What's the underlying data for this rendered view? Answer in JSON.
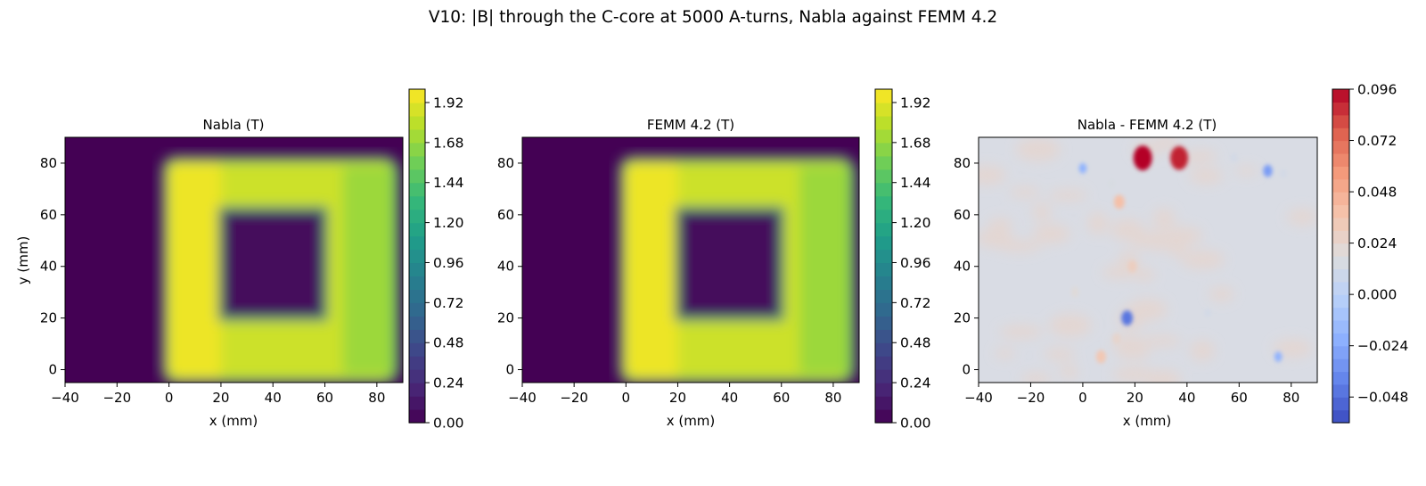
{
  "figure": {
    "title": "V10: |B| through the C-core at 5000 A-turns, Nabla against FEMM 4.2"
  },
  "chart_data": [
    {
      "type": "heatmap",
      "title": "Nabla (T)",
      "xlabel": "x (mm)",
      "ylabel": "y (mm)",
      "xlim": [
        -40,
        90
      ],
      "ylim": [
        -5,
        90
      ],
      "xticks": [
        "−40",
        "−20",
        "0",
        "20",
        "40",
        "60",
        "80"
      ],
      "yticks": [
        "0",
        "20",
        "40",
        "60",
        "80"
      ],
      "colormap": "viridis",
      "colorbar": {
        "min": 0.0,
        "max": 2.0,
        "ticks": [
          "0.00",
          "0.24",
          "0.48",
          "0.72",
          "0.96",
          "1.20",
          "1.44",
          "1.68",
          "1.92"
        ]
      },
      "field": {
        "description_values": "|B| in tesla inside a C-core frame",
        "core_outer": {
          "x": [
            -2,
            88
          ],
          "y": [
            -5,
            82
          ]
        },
        "window": {
          "x": [
            20,
            60
          ],
          "y": [
            20,
            62
          ]
        },
        "background": 0.0,
        "left_leg": 1.95,
        "top_yoke": 1.85,
        "bottom_yoke": 1.85,
        "right_leg": 1.7,
        "window_value": 0.05
      }
    },
    {
      "type": "heatmap",
      "title": "FEMM 4.2 (T)",
      "xlabel": "x (mm)",
      "ylabel": "",
      "xlim": [
        -40,
        90
      ],
      "ylim": [
        -5,
        90
      ],
      "xticks": [
        "−40",
        "−20",
        "0",
        "20",
        "40",
        "60",
        "80"
      ],
      "yticks": [
        "0",
        "20",
        "40",
        "60",
        "80"
      ],
      "colormap": "viridis",
      "colorbar": {
        "min": 0.0,
        "max": 2.0,
        "ticks": [
          "0.00",
          "0.24",
          "0.48",
          "0.72",
          "0.96",
          "1.20",
          "1.44",
          "1.68",
          "1.92"
        ]
      },
      "field": {
        "core_outer": {
          "x": [
            -2,
            88
          ],
          "y": [
            -5,
            82
          ]
        },
        "window": {
          "x": [
            20,
            60
          ],
          "y": [
            20,
            62
          ]
        },
        "background": 0.0,
        "left_leg": 1.95,
        "top_yoke": 1.85,
        "bottom_yoke": 1.85,
        "right_leg": 1.7,
        "window_value": 0.05
      }
    },
    {
      "type": "heatmap",
      "title": "Nabla - FEMM 4.2 (T)",
      "xlabel": "x (mm)",
      "ylabel": "",
      "xlim": [
        -40,
        90
      ],
      "ylim": [
        -5,
        90
      ],
      "xticks": [
        "−40",
        "−20",
        "0",
        "20",
        "40",
        "60",
        "80"
      ],
      "yticks": [
        "0",
        "20",
        "40",
        "60",
        "80"
      ],
      "colormap": "coolwarm",
      "colorbar": {
        "min": -0.06,
        "max": 0.096,
        "ticks": [
          "−0.048",
          "−0.024",
          "0.000",
          "0.024",
          "0.048",
          "0.072",
          "0.096"
        ],
        "tick_values": [
          -0.048,
          -0.024,
          0.0,
          0.024,
          0.048,
          0.072,
          0.096
        ]
      },
      "hotspots": [
        {
          "x": 23,
          "y": 82,
          "value": 0.096
        },
        {
          "x": 37,
          "y": 82,
          "value": 0.09
        },
        {
          "x": 14,
          "y": 65,
          "value": 0.04
        },
        {
          "x": 19,
          "y": 40,
          "value": 0.03
        },
        {
          "x": 7,
          "y": 5,
          "value": 0.035
        },
        {
          "x": 13,
          "y": 12,
          "value": 0.025
        },
        {
          "x": -3,
          "y": 30,
          "value": 0.02
        },
        {
          "x": 11,
          "y": 72,
          "value": 0.015
        },
        {
          "x": 58,
          "y": 82,
          "value": 0.012
        },
        {
          "x": 77,
          "y": 76,
          "value": 0.012
        },
        {
          "x": 48,
          "y": 22,
          "value": 0.012
        },
        {
          "x": 0,
          "y": 78,
          "value": -0.02
        },
        {
          "x": 17,
          "y": 20,
          "value": -0.045
        },
        {
          "x": 71,
          "y": 77,
          "value": -0.03
        },
        {
          "x": 75,
          "y": 5,
          "value": -0.02
        }
      ]
    }
  ]
}
